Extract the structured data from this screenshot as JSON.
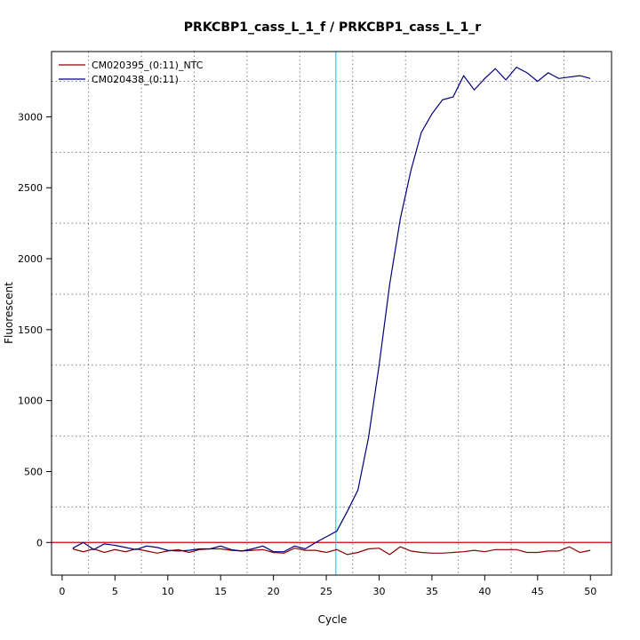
{
  "chart_data": {
    "type": "line",
    "title": "PRKCBP1_cass_L_1_f / PRKCBP1_cass_L_1_r",
    "xlabel": "Cycle",
    "ylabel": "Fluorescent",
    "xlim": [
      -1,
      52
    ],
    "ylim": [
      -230,
      3460
    ],
    "xticks": [
      0,
      5,
      10,
      15,
      20,
      25,
      30,
      35,
      40,
      45,
      50
    ],
    "yticks": [
      0,
      500,
      1000,
      1500,
      2000,
      2500,
      3000
    ],
    "grid": true,
    "legend_position": "top-left",
    "threshold_line": {
      "y": 0,
      "color": "#cc0000"
    },
    "cycle_marker": {
      "x": 25.9,
      "color": "#00e5ee"
    },
    "series": [
      {
        "name": "CM020395_(0:11)_NTC",
        "color": "#8b0000",
        "x": [
          1,
          2,
          3,
          4,
          5,
          6,
          7,
          8,
          9,
          10,
          11,
          12,
          13,
          14,
          15,
          16,
          17,
          18,
          19,
          20,
          21,
          22,
          23,
          24,
          25,
          26,
          27,
          28,
          29,
          30,
          31,
          32,
          33,
          34,
          35,
          36,
          37,
          38,
          39,
          40,
          41,
          42,
          43,
          44,
          45,
          46,
          47,
          48,
          49,
          50
        ],
        "values": [
          -45,
          -65,
          -45,
          -70,
          -50,
          -65,
          -45,
          -60,
          -75,
          -60,
          -50,
          -70,
          -50,
          -45,
          -45,
          -55,
          -60,
          -55,
          -50,
          -70,
          -75,
          -40,
          -55,
          -55,
          -70,
          -50,
          -85,
          -70,
          -45,
          -40,
          -85,
          -30,
          -60,
          -70,
          -75,
          -75,
          -70,
          -65,
          -55,
          -65,
          -50,
          -50,
          -50,
          -70,
          -70,
          -60,
          -60,
          -30,
          -70,
          -55
        ]
      },
      {
        "name": "CM020438_(0:11)",
        "color": "#000080",
        "x": [
          1,
          2,
          3,
          4,
          5,
          6,
          7,
          8,
          9,
          10,
          11,
          12,
          13,
          14,
          15,
          16,
          17,
          18,
          19,
          20,
          21,
          22,
          23,
          24,
          25,
          26,
          27,
          28,
          29,
          30,
          31,
          32,
          33,
          34,
          35,
          36,
          37,
          38,
          39,
          40,
          41,
          42,
          43,
          44,
          45,
          46,
          47,
          48,
          49,
          50
        ],
        "values": [
          -40,
          0,
          -50,
          -10,
          -20,
          -35,
          -50,
          -25,
          -35,
          -55,
          -60,
          -55,
          -45,
          -45,
          -25,
          -50,
          -60,
          -45,
          -25,
          -65,
          -65,
          -25,
          -45,
          0,
          40,
          80,
          220,
          370,
          740,
          1250,
          1820,
          2280,
          2620,
          2890,
          3020,
          3120,
          3140,
          3290,
          3190,
          3270,
          3340,
          3260,
          3350,
          3310,
          3250,
          3310,
          3270,
          3280,
          3290,
          3270
        ]
      }
    ]
  }
}
